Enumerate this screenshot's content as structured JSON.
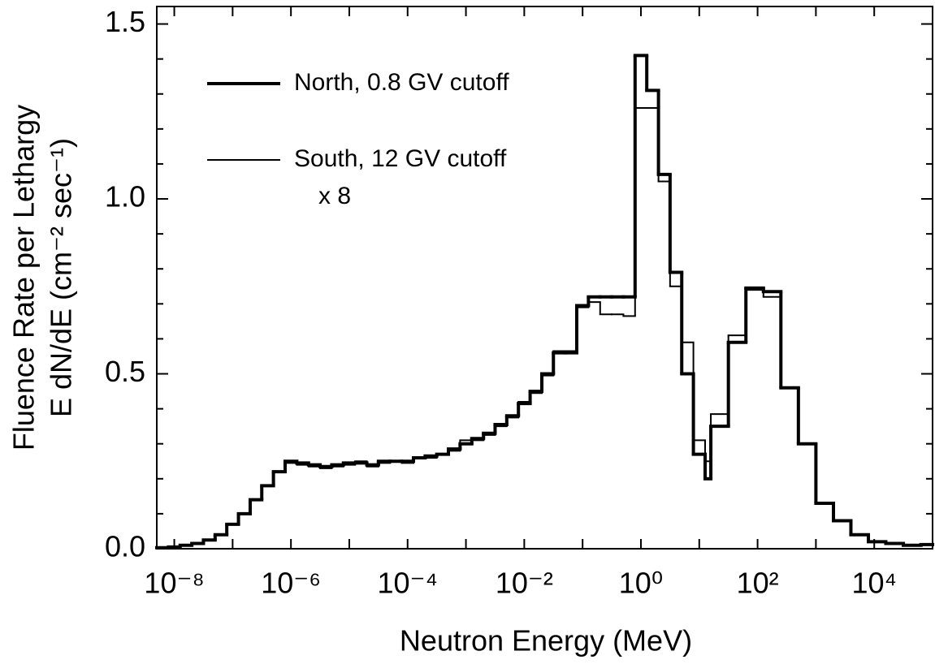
{
  "chart_data": {
    "type": "histogram",
    "x_label": "Neutron Energy  (MeV)",
    "y_label": [
      "Fluence Rate per Lethargy",
      "E dN/dE (cm⁻² sec⁻¹)"
    ],
    "annotation": "x 8",
    "xscale": "log",
    "xlim": [
      5.01e-09,
      100000
    ],
    "ylim": [
      0,
      1.55
    ],
    "xticks": [
      {
        "value": 1e-08,
        "label": "10⁻⁸"
      },
      {
        "value": 1e-06,
        "label": "10⁻⁶"
      },
      {
        "value": 0.0001,
        "label": "10⁻⁴"
      },
      {
        "value": 0.01,
        "label": "10⁻²"
      },
      {
        "value": 1,
        "label": "10⁰"
      },
      {
        "value": 100,
        "label": "10²"
      },
      {
        "value": 10000,
        "label": "10⁴"
      }
    ],
    "x_minor_ticks": [
      1e-07,
      1e-05,
      0.001,
      0.1,
      10,
      1000
    ],
    "yticks": [
      {
        "value": 0,
        "label": "0.0"
      },
      {
        "value": 0.5,
        "label": "0.5"
      },
      {
        "value": 1,
        "label": "1.0"
      },
      {
        "value": 1.5,
        "label": "1.5"
      }
    ],
    "y_minor_ticks": [
      0.1,
      0.2,
      0.3,
      0.4,
      0.6,
      0.7,
      0.8,
      0.9,
      1.1,
      1.2,
      1.3,
      1.4
    ],
    "bins": [
      5.01e-09,
      7.94e-09,
      1.26e-08,
      2e-08,
      3.16e-08,
      5.01e-08,
      7.94e-08,
      1.26e-07,
      2e-07,
      3.16e-07,
      5.01e-07,
      7.94e-07,
      1.26e-06,
      2e-06,
      3.16e-06,
      5.01e-06,
      7.94e-06,
      1.26e-05,
      2e-05,
      3.16e-05,
      5.01e-05,
      7.94e-05,
      0.000126,
      0.0002,
      0.000316,
      0.000501,
      0.000794,
      0.00126,
      0.002,
      0.00316,
      0.00501,
      0.00794,
      0.0126,
      0.02,
      0.0316,
      0.0501,
      0.0794,
      0.126,
      0.2,
      0.316,
      0.501,
      0.794,
      1.26,
      2.0,
      3.16,
      5.01,
      7.94,
      12.6,
      15.8,
      31.6,
      63.1,
      126,
      251,
      501,
      1000,
      2000,
      3980,
      7940,
      15800,
      31600,
      63100,
      100000
    ],
    "series": [
      {
        "name": "North, 0.8 GV cutoff",
        "color": "#000000",
        "width": 4,
        "values": [
          0.003,
          0.005,
          0.01,
          0.015,
          0.025,
          0.04,
          0.07,
          0.1,
          0.14,
          0.18,
          0.22,
          0.25,
          0.245,
          0.24,
          0.235,
          0.24,
          0.245,
          0.245,
          0.24,
          0.25,
          0.25,
          0.25,
          0.26,
          0.265,
          0.27,
          0.285,
          0.3,
          0.315,
          0.33,
          0.355,
          0.38,
          0.415,
          0.45,
          0.5,
          0.56,
          0.56,
          0.695,
          0.72,
          0.72,
          0.72,
          0.72,
          1.41,
          1.31,
          1.07,
          0.79,
          0.5,
          0.27,
          0.2,
          0.35,
          0.59,
          0.745,
          0.735,
          0.46,
          0.3,
          0.13,
          0.08,
          0.04,
          0.02,
          0.015,
          0.01,
          0.012
        ]
      },
      {
        "name": "South, 12 GV cutoff",
        "color": "#000000",
        "width": 2,
        "values": [
          0.003,
          0.005,
          0.01,
          0.015,
          0.025,
          0.04,
          0.07,
          0.1,
          0.14,
          0.18,
          0.22,
          0.245,
          0.24,
          0.235,
          0.23,
          0.235,
          0.24,
          0.25,
          0.235,
          0.245,
          0.25,
          0.245,
          0.26,
          0.26,
          0.27,
          0.28,
          0.31,
          0.31,
          0.325,
          0.35,
          0.375,
          0.42,
          0.445,
          0.495,
          0.565,
          0.565,
          0.69,
          0.705,
          0.67,
          0.67,
          0.665,
          1.26,
          1.26,
          1.05,
          0.75,
          0.59,
          0.31,
          0.25,
          0.385,
          0.61,
          0.74,
          0.72,
          0.46,
          0.3,
          0.13,
          0.08,
          0.04,
          0.02,
          0.015,
          0.01,
          0.012
        ]
      }
    ]
  }
}
